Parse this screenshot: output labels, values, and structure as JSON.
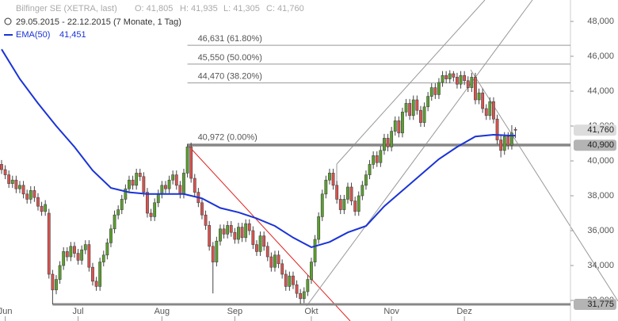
{
  "chart_data": {
    "type": "candlestick",
    "title": "Bilfinger SE (XETRA, last)",
    "ohlc_labels": [
      "O: 41,805",
      "H: 41,935",
      "L: 41,305",
      "C: 41,760"
    ],
    "subtitle": "29.05.2015 - 22.12.2015 (7 Monate, 1 Tag)",
    "up_color": "#5aa02c",
    "down_color": "#d9534f",
    "open": [
      39800,
      39500,
      39200,
      38700,
      38900,
      38400,
      38600,
      38100,
      37800,
      38300,
      37900,
      37400,
      37100,
      37000,
      33500,
      32600,
      33200,
      34000,
      34800,
      34500,
      35100,
      34700,
      34300,
      34900,
      35200,
      33900,
      33100,
      32800,
      34200,
      34600,
      35300,
      36100,
      36900,
      37200,
      37800,
      38400,
      38900,
      38600,
      39300,
      39100,
      38200,
      37000,
      36800,
      37600,
      38100,
      38600,
      38400,
      38900,
      39200,
      38600,
      38100,
      39300,
      40800,
      39000,
      38200,
      37600,
      36900,
      36300,
      35100,
      34200,
      35400,
      36100,
      35800,
      36300,
      35900,
      35500,
      36200,
      35600,
      36400,
      36000,
      35200,
      34800,
      35700,
      35100,
      34500,
      33900,
      34600,
      34100,
      33500,
      32800,
      33400,
      32900,
      32400,
      32100,
      32500,
      33200,
      34200,
      35500,
      36800,
      38100,
      38900,
      39300,
      38600,
      37800,
      37200,
      37800,
      38500,
      37700,
      37100,
      38000,
      38600,
      39200,
      39800,
      40300,
      39900,
      40600,
      41300,
      40800,
      41700,
      42300,
      41600,
      42800,
      43300,
      42600,
      43500,
      42900,
      42200,
      43100,
      43700,
      44200,
      43800,
      44500,
      44900,
      44700,
      45000,
      44800,
      44400,
      44900,
      44600,
      44200,
      44800,
      43500,
      43900,
      43000,
      42600,
      43400,
      42400,
      41200,
      40600,
      41400,
      40900,
      41805
    ],
    "high": [
      40050,
      39750,
      39450,
      39150,
      39150,
      38850,
      38850,
      38350,
      38550,
      38550,
      38150,
      37650,
      37750,
      37250,
      33750,
      33450,
      34250,
      35050,
      35050,
      35350,
      35350,
      34950,
      35150,
      35450,
      35450,
      34150,
      33350,
      34450,
      34850,
      35550,
      36350,
      37150,
      37450,
      38050,
      38650,
      39150,
      39150,
      39550,
      39550,
      39350,
      38450,
      37250,
      37850,
      38350,
      38850,
      38850,
      39150,
      39450,
      39450,
      38850,
      39550,
      40972,
      41050,
      39250,
      38450,
      37850,
      37150,
      36550,
      35350,
      35650,
      36350,
      36350,
      36550,
      36550,
      36150,
      36450,
      36450,
      36650,
      36650,
      36250,
      35450,
      35950,
      35950,
      35350,
      34750,
      34850,
      34850,
      34350,
      33750,
      33650,
      33650,
      33150,
      32650,
      32750,
      33450,
      34450,
      35750,
      37050,
      38350,
      39150,
      39550,
      39550,
      38850,
      38050,
      38050,
      38750,
      38750,
      37950,
      38250,
      38850,
      39450,
      40050,
      40550,
      40550,
      40850,
      41550,
      41550,
      41950,
      42550,
      42550,
      43050,
      43550,
      43550,
      43750,
      43750,
      43150,
      43350,
      43950,
      44450,
      44450,
      44750,
      45150,
      45150,
      45200,
      45150,
      45050,
      45150,
      45150,
      44850,
      45050,
      45050,
      44150,
      44150,
      43250,
      43650,
      43650,
      42650,
      41450,
      41650,
      41650,
      42050,
      41935
    ],
    "low": [
      39250,
      38950,
      38450,
      38450,
      38150,
      38150,
      37850,
      37550,
      37550,
      37650,
      37150,
      36850,
      36850,
      33250,
      31775,
      32350,
      32950,
      33750,
      34250,
      34250,
      34450,
      34050,
      34050,
      34650,
      33650,
      32850,
      32550,
      32550,
      33950,
      34350,
      35050,
      35850,
      36650,
      36950,
      37550,
      38150,
      38350,
      38350,
      38850,
      37950,
      36750,
      36550,
      36550,
      37350,
      37850,
      38150,
      38150,
      38650,
      38350,
      37850,
      37850,
      39050,
      38750,
      37950,
      37350,
      36650,
      36050,
      34850,
      32400,
      33950,
      35150,
      35550,
      35550,
      35650,
      35250,
      35250,
      35350,
      35350,
      35750,
      34950,
      34550,
      34550,
      34850,
      34250,
      33650,
      33650,
      33850,
      33250,
      32550,
      32550,
      32650,
      32150,
      31800,
      31850,
      32250,
      32950,
      33950,
      35250,
      36550,
      37850,
      38650,
      38350,
      37550,
      36950,
      36950,
      37550,
      37450,
      36850,
      36850,
      37750,
      38350,
      38950,
      39550,
      39650,
      39650,
      40350,
      40550,
      40550,
      41450,
      41350,
      41350,
      42550,
      42350,
      42350,
      42650,
      41950,
      41950,
      42850,
      43450,
      43550,
      43550,
      44250,
      44450,
      44450,
      44550,
      44150,
      44150,
      44350,
      43950,
      43950,
      43250,
      43250,
      42750,
      42350,
      42350,
      42150,
      40950,
      40200,
      40350,
      40650,
      40650,
      41305
    ],
    "close": [
      39500,
      39200,
      38700,
      38900,
      38400,
      38600,
      38100,
      37800,
      38300,
      37900,
      37400,
      37100,
      37500,
      33500,
      32600,
      33200,
      34000,
      34800,
      34500,
      35100,
      34700,
      34300,
      34900,
      35200,
      33900,
      33100,
      32800,
      34200,
      34600,
      35300,
      36100,
      36900,
      37200,
      37800,
      38400,
      38900,
      38600,
      39300,
      39100,
      38200,
      37000,
      36800,
      37600,
      38100,
      38600,
      38400,
      38900,
      39200,
      38600,
      38100,
      39300,
      40800,
      39000,
      38200,
      37600,
      36900,
      36300,
      35100,
      34200,
      35400,
      36100,
      35800,
      36300,
      35900,
      35500,
      36200,
      35600,
      36400,
      36000,
      35200,
      34800,
      35700,
      35100,
      34500,
      33900,
      34600,
      34100,
      33500,
      32800,
      33400,
      32900,
      32400,
      32100,
      32500,
      33200,
      34200,
      35500,
      36800,
      38100,
      38900,
      39300,
      38600,
      37800,
      37200,
      37800,
      38500,
      37700,
      37100,
      38000,
      38600,
      39200,
      39800,
      40300,
      39900,
      40600,
      41300,
      40800,
      41700,
      42300,
      41600,
      42800,
      43300,
      42600,
      43500,
      42900,
      42200,
      43100,
      43700,
      44200,
      43800,
      44500,
      44900,
      44700,
      45000,
      44800,
      44400,
      44900,
      44600,
      44200,
      44800,
      43500,
      43900,
      43000,
      42600,
      43400,
      42400,
      41200,
      40600,
      41400,
      40900,
      41600,
      41760
    ],
    "series": [
      {
        "name": "EMA(50)",
        "value_label": "41,451",
        "color": "#1a33d6",
        "x": [
          0,
          5,
          10,
          15,
          20,
          25,
          30,
          35,
          40,
          45,
          50,
          55,
          60,
          65,
          70,
          75,
          80,
          85,
          90,
          95,
          100,
          105,
          110,
          115,
          120,
          125,
          130,
          135,
          140,
          141
        ],
        "values": [
          46400,
          44700,
          43300,
          42000,
          40800,
          39450,
          38450,
          38200,
          38100,
          38100,
          38100,
          37850,
          37300,
          37050,
          36700,
          36270,
          35600,
          35050,
          35350,
          35900,
          36270,
          37400,
          38300,
          39200,
          40100,
          40800,
          41400,
          41500,
          41450,
          41451
        ]
      }
    ],
    "levels": [
      {
        "value": 46631,
        "label": "46,631 (61.80%)"
      },
      {
        "value": 45550,
        "label": "45,550 (50.00%)"
      },
      {
        "value": 44470,
        "label": "44,470 (38.20%)"
      },
      {
        "value": 40972,
        "label": "40,972 (0.00%)"
      }
    ],
    "price_markers": [
      {
        "value": 41760,
        "label": "41,760",
        "color": "#dcdcdc"
      },
      {
        "value": 40900,
        "label": "40,900",
        "color": "#b4b4b4"
      },
      {
        "value": 31775,
        "label": "31,775",
        "color": "#b4b4b4"
      }
    ],
    "xlim": [
      -0.43,
      156.1
    ],
    "xticks": [
      {
        "value": 1,
        "label": "Jun"
      },
      {
        "value": 21,
        "label": "Jul"
      },
      {
        "value": 44,
        "label": "Aug"
      },
      {
        "value": 64,
        "label": "Sep"
      },
      {
        "value": 85,
        "label": "Okt"
      },
      {
        "value": 107,
        "label": "Nov"
      },
      {
        "value": 127,
        "label": "Dez"
      }
    ],
    "ylim": [
      30818,
      49227
    ],
    "yticks": [
      {
        "value": 32000,
        "label": "32,000"
      },
      {
        "value": 34000,
        "label": "34,000"
      },
      {
        "value": 36000,
        "label": "36,000"
      },
      {
        "value": 38000,
        "label": "38,000"
      },
      {
        "value": 40000,
        "label": "40,000"
      },
      {
        "value": 42000,
        "label": "42,000"
      },
      {
        "value": 44000,
        "label": "44,000"
      },
      {
        "value": 46000,
        "label": "46,000"
      },
      {
        "value": 48000,
        "label": "48,000"
      }
    ]
  }
}
